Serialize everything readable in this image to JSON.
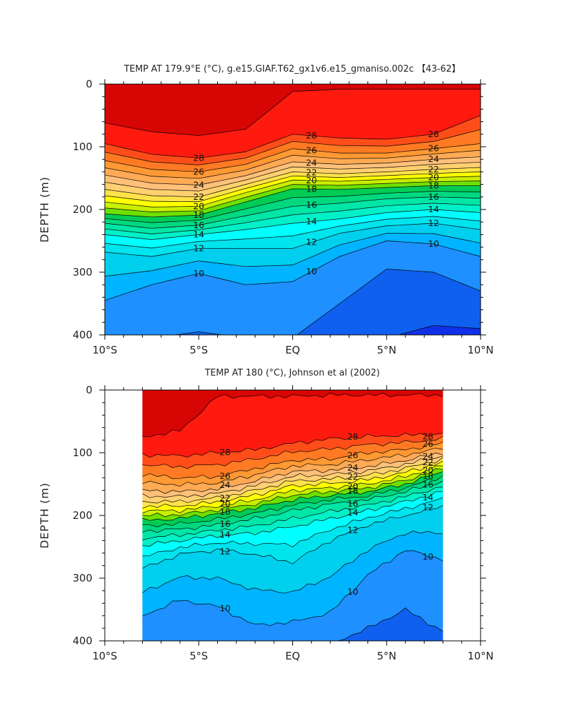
{
  "chart_data": [
    {
      "type": "contour",
      "title": "TEMP AT 179.9°E (°C), g.e15.GIAF.T62_gx1v6.e15_gmaniso.002c 【43-62】",
      "xlabel": "",
      "ylabel": "DEPTH (m)",
      "x_ticks": [
        "10°S",
        "5°S",
        "EQ",
        "5°N",
        "10°N"
      ],
      "x_tick_values": [
        -10,
        -5,
        0,
        5,
        10
      ],
      "y_ticks": [
        "0",
        "100",
        "200",
        "300",
        "400"
      ],
      "y_tick_values": [
        0,
        100,
        200,
        300,
        400
      ],
      "xlim": [
        -10,
        10
      ],
      "ylim": [
        400,
        0
      ],
      "data_xrange": [
        -10,
        10
      ],
      "contour_interval": 1,
      "labeled_levels": [
        10,
        12,
        14,
        16,
        18,
        20,
        22,
        24,
        26,
        28
      ],
      "isotherm_depths": {
        "lat": [
          -10,
          -7.5,
          -5,
          -2.5,
          0,
          2.5,
          5,
          7.5,
          10
        ],
        "levels": {
          "29": [
            62,
            76,
            82,
            72,
            12,
            8,
            8,
            8,
            8
          ],
          "28": [
            95,
            112,
            118,
            108,
            80,
            86,
            88,
            80,
            50
          ],
          "26": [
            122,
            136,
            140,
            128,
            103,
            110,
            110,
            103,
            95
          ],
          "24": [
            145,
            158,
            161,
            146,
            124,
            128,
            126,
            120,
            116
          ],
          "22": [
            168,
            178,
            180,
            160,
            140,
            143,
            140,
            136,
            133
          ],
          "20": [
            188,
            196,
            195,
            173,
            153,
            155,
            152,
            149,
            147
          ],
          "18": [
            207,
            212,
            209,
            188,
            167,
            168,
            165,
            162,
            162
          ],
          "16": [
            222,
            230,
            225,
            210,
            195,
            190,
            183,
            180,
            182
          ],
          "14": [
            240,
            248,
            240,
            232,
            222,
            215,
            205,
            200,
            205
          ],
          "12": [
            268,
            275,
            262,
            262,
            262,
            238,
            226,
            222,
            232
          ],
          "10": [
            345,
            320,
            302,
            320,
            315,
            275,
            250,
            255,
            275
          ],
          "9": [
            405,
            405,
            395,
            405,
            405,
            350,
            295,
            300,
            330
          ],
          "8": [
            405,
            405,
            405,
            405,
            405,
            405,
            405,
            385,
            390
          ]
        }
      }
    },
    {
      "type": "contour",
      "title": "TEMP AT 180 (°C), Johnson et al (2002)",
      "xlabel": "",
      "ylabel": "DEPTH (m)",
      "x_ticks": [
        "10°S",
        "5°S",
        "EQ",
        "5°N",
        "10°N"
      ],
      "x_tick_values": [
        -10,
        -5,
        0,
        5,
        10
      ],
      "y_ticks": [
        "0",
        "100",
        "200",
        "300",
        "400"
      ],
      "y_tick_values": [
        0,
        100,
        200,
        300,
        400
      ],
      "xlim": [
        -10,
        10
      ],
      "ylim": [
        400,
        0
      ],
      "data_xrange": [
        -8,
        8
      ],
      "contour_interval": 1,
      "labeled_levels": [
        10,
        12,
        14,
        16,
        18,
        20,
        22,
        24,
        26,
        28
      ],
      "isotherm_depths": {
        "lat": [
          -8,
          -6,
          -4,
          -2,
          0,
          2,
          4,
          6,
          8
        ],
        "levels": {
          "29": [
            75,
            65,
            10,
            10,
            10,
            8,
            8,
            8,
            8
          ],
          "28": [
            103,
            105,
            100,
            95,
            85,
            78,
            74,
            72,
            70
          ],
          "26": [
            135,
            140,
            138,
            125,
            112,
            110,
            100,
            95,
            85
          ],
          "24": [
            160,
            162,
            158,
            145,
            130,
            128,
            122,
            112,
            100
          ],
          "22": [
            178,
            178,
            172,
            160,
            145,
            142,
            136,
            125,
            110
          ],
          "20": [
            193,
            192,
            185,
            175,
            160,
            156,
            150,
            138,
            120
          ],
          "18": [
            208,
            205,
            197,
            188,
            175,
            168,
            162,
            150,
            130
          ],
          "16": [
            225,
            222,
            215,
            205,
            192,
            182,
            175,
            162,
            145
          ],
          "14": [
            248,
            240,
            232,
            228,
            218,
            205,
            192,
            178,
            162
          ],
          "12": [
            285,
            262,
            255,
            262,
            275,
            240,
            215,
            200,
            185
          ],
          "10": [
            360,
            335,
            345,
            375,
            370,
            355,
            295,
            255,
            270
          ],
          "9": [
            405,
            405,
            405,
            405,
            405,
            405,
            380,
            350,
            385
          ]
        }
      }
    }
  ]
}
